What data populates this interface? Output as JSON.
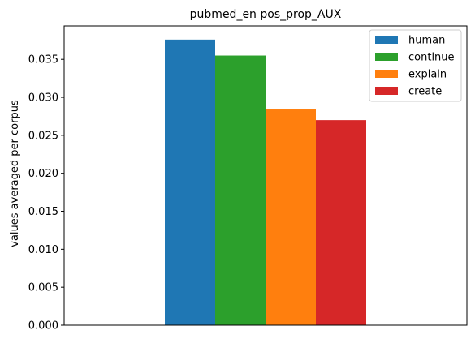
{
  "chart_data": {
    "type": "bar",
    "title": "pubmed_en pos_prop_AUX",
    "xlabel": "",
    "ylabel": "values averaged per corpus",
    "categories": [
      ""
    ],
    "series": [
      {
        "name": "human",
        "values": [
          0.0376
        ],
        "color": "#1f77b4"
      },
      {
        "name": "continue",
        "values": [
          0.0355
        ],
        "color": "#2ca02c"
      },
      {
        "name": "explain",
        "values": [
          0.0284
        ],
        "color": "#ff7f0e"
      },
      {
        "name": "create",
        "values": [
          0.027
        ],
        "color": "#d62728"
      }
    ],
    "ylim": [
      0,
      0.0394
    ],
    "yticks": [
      "0.000",
      "0.005",
      "0.010",
      "0.015",
      "0.020",
      "0.025",
      "0.030",
      "0.035"
    ],
    "ytick_values": [
      0,
      0.005,
      0.01,
      0.015,
      0.02,
      0.025,
      0.03,
      0.035
    ],
    "grid": false,
    "legend_position": "top-right"
  }
}
